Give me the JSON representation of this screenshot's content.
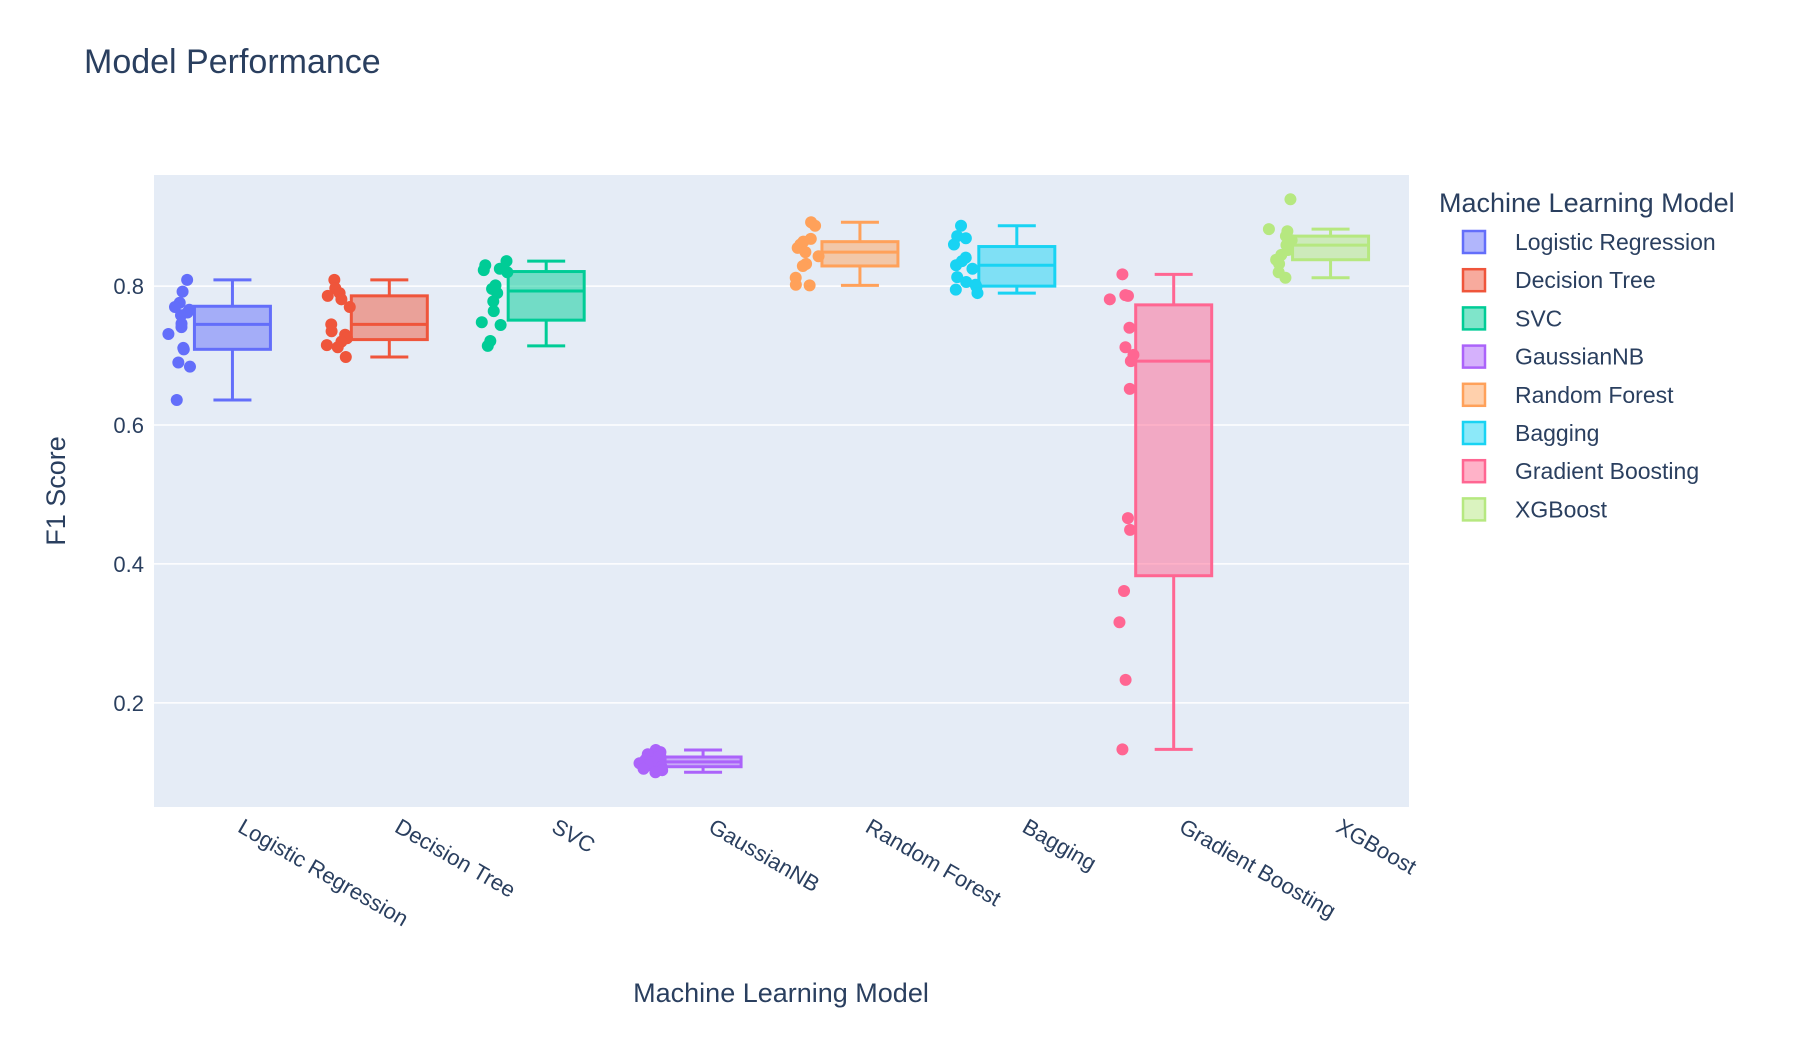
{
  "chart_data": {
    "type": "box",
    "title": "Model Performance",
    "xlabel": "Machine Learning Model",
    "ylabel": "F1 Score",
    "ylim": [
      0.05,
      0.96
    ],
    "yticks": [
      0.2,
      0.4,
      0.6,
      0.8
    ],
    "ytick_labels": [
      "0.2",
      "0.4",
      "0.6",
      "0.8"
    ],
    "grid": true,
    "legend": {
      "title": "Machine Learning Model",
      "position": "right"
    },
    "categories": [
      "Logistic Regression",
      "Decision Tree",
      "SVC",
      "GaussianNB",
      "Random Forest",
      "Bagging",
      "Gradient Boosting",
      "XGBoost"
    ],
    "series": [
      {
        "name": "Logistic Regression",
        "color": "#636efa",
        "box": {
          "min": 0.636,
          "q1": 0.709,
          "median": 0.745,
          "q3": 0.771,
          "max": 0.809
        },
        "points": [
          0.809,
          0.792,
          0.776,
          0.77,
          0.766,
          0.762,
          0.758,
          0.746,
          0.741,
          0.731,
          0.711,
          0.709,
          0.69,
          0.684,
          0.636
        ]
      },
      {
        "name": "Decision Tree",
        "color": "#EF553B",
        "box": {
          "min": 0.698,
          "q1": 0.723,
          "median": 0.745,
          "q3": 0.786,
          "max": 0.809
        },
        "points": [
          0.809,
          0.797,
          0.79,
          0.786,
          0.781,
          0.77,
          0.745,
          0.735,
          0.73,
          0.725,
          0.72,
          0.715,
          0.712,
          0.698
        ]
      },
      {
        "name": "SVC",
        "color": "#00cc96",
        "box": {
          "min": 0.714,
          "q1": 0.751,
          "median": 0.793,
          "q3": 0.821,
          "max": 0.836
        },
        "points": [
          0.836,
          0.83,
          0.825,
          0.823,
          0.82,
          0.801,
          0.796,
          0.79,
          0.778,
          0.764,
          0.748,
          0.744,
          0.721,
          0.714
        ]
      },
      {
        "name": "GaussianNB",
        "color": "#ab63fa",
        "box": {
          "min": 0.1,
          "q1": 0.108,
          "median": 0.115,
          "q3": 0.122,
          "max": 0.132
        },
        "points": [
          0.132,
          0.129,
          0.126,
          0.123,
          0.12,
          0.118,
          0.115,
          0.113,
          0.11,
          0.108,
          0.105,
          0.103,
          0.1
        ]
      },
      {
        "name": "Random Forest",
        "color": "#FFA15A",
        "box": {
          "min": 0.801,
          "q1": 0.829,
          "median": 0.849,
          "q3": 0.864,
          "max": 0.892
        },
        "points": [
          0.892,
          0.887,
          0.868,
          0.864,
          0.86,
          0.855,
          0.849,
          0.843,
          0.832,
          0.829,
          0.812,
          0.802,
          0.801
        ]
      },
      {
        "name": "Bagging",
        "color": "#19d3f3",
        "box": {
          "min": 0.79,
          "q1": 0.8,
          "median": 0.83,
          "q3": 0.857,
          "max": 0.887
        },
        "points": [
          0.887,
          0.872,
          0.869,
          0.86,
          0.841,
          0.836,
          0.83,
          0.825,
          0.813,
          0.806,
          0.802,
          0.799,
          0.795,
          0.79
        ]
      },
      {
        "name": "Gradient Boosting",
        "color": "#FF6692",
        "box": {
          "min": 0.133,
          "q1": 0.383,
          "median": 0.692,
          "q3": 0.773,
          "max": 0.817
        },
        "points": [
          0.817,
          0.787,
          0.786,
          0.781,
          0.74,
          0.712,
          0.701,
          0.692,
          0.652,
          0.466,
          0.449,
          0.361,
          0.316,
          0.233,
          0.133
        ]
      },
      {
        "name": "XGBoost",
        "color": "#B6E880",
        "box": {
          "min": 0.812,
          "q1": 0.838,
          "median": 0.859,
          "q3": 0.872,
          "max": 0.882
        },
        "points": [
          0.925,
          0.882,
          0.879,
          0.872,
          0.866,
          0.859,
          0.852,
          0.845,
          0.838,
          0.832,
          0.82,
          0.812
        ]
      }
    ]
  }
}
